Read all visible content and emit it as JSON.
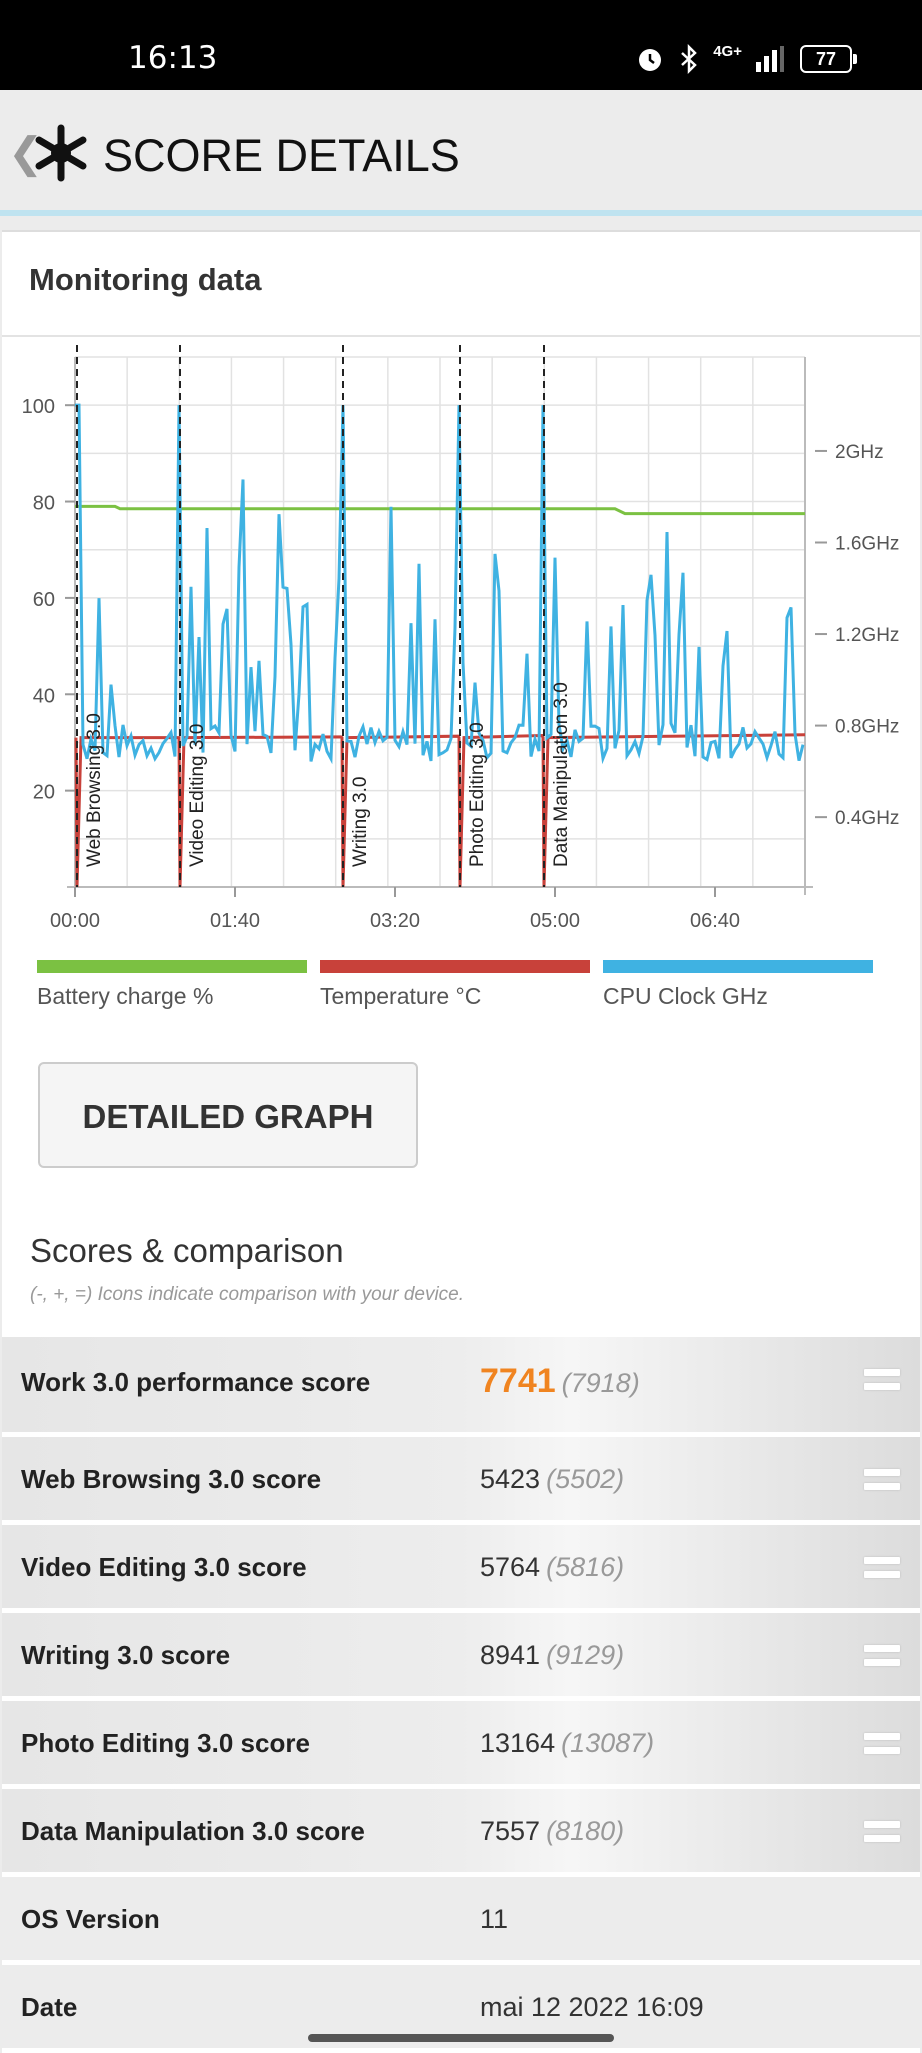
{
  "status": {
    "time": "16:13",
    "network": "4G+",
    "battery": "77"
  },
  "header": {
    "title": "SCORE DETAILS"
  },
  "monitoring": {
    "title": "Monitoring data",
    "left_ticks": [
      "100",
      "80",
      "60",
      "40",
      "20"
    ],
    "right_ticks": [
      "2GHz",
      "1.6GHz",
      "1.2GHz",
      "0.8GHz",
      "0.4GHz"
    ],
    "x_ticks": [
      "00:00",
      "01:40",
      "03:20",
      "05:00",
      "06:40"
    ],
    "segments": [
      "Web Browsing 3.0",
      "Video Editing 3.0",
      "Writing 3.0",
      "Photo Editing 3.0",
      "Data Manipulation 3.0"
    ],
    "legend": [
      {
        "label": "Battery charge %",
        "color": "#7bc142"
      },
      {
        "label": "Temperature °C",
        "color": "#c8413a"
      },
      {
        "label": "CPU Clock GHz",
        "color": "#3fb2e2"
      }
    ]
  },
  "detail_button": "DETAILED GRAPH",
  "scores": {
    "title": "Scores & comparison",
    "subtitle": "(-, +, =) Icons indicate comparison with your device.",
    "rows": [
      {
        "label": "Work 3.0 performance score",
        "value": "7741",
        "compare": "(7918)"
      },
      {
        "label": "Web Browsing 3.0 score",
        "value": "5423",
        "compare": "(5502)"
      },
      {
        "label": "Video Editing 3.0 score",
        "value": "5764",
        "compare": "(5816)"
      },
      {
        "label": "Writing 3.0 score",
        "value": "8941",
        "compare": "(9129)"
      },
      {
        "label": "Photo Editing 3.0 score",
        "value": "13164",
        "compare": "(13087)"
      },
      {
        "label": "Data Manipulation 3.0 score",
        "value": "7557",
        "compare": "(8180)"
      }
    ],
    "os": {
      "label": "OS Version",
      "value": "11"
    },
    "date": {
      "label": "Date",
      "value": "mai 12 2022 16:09"
    }
  }
}
